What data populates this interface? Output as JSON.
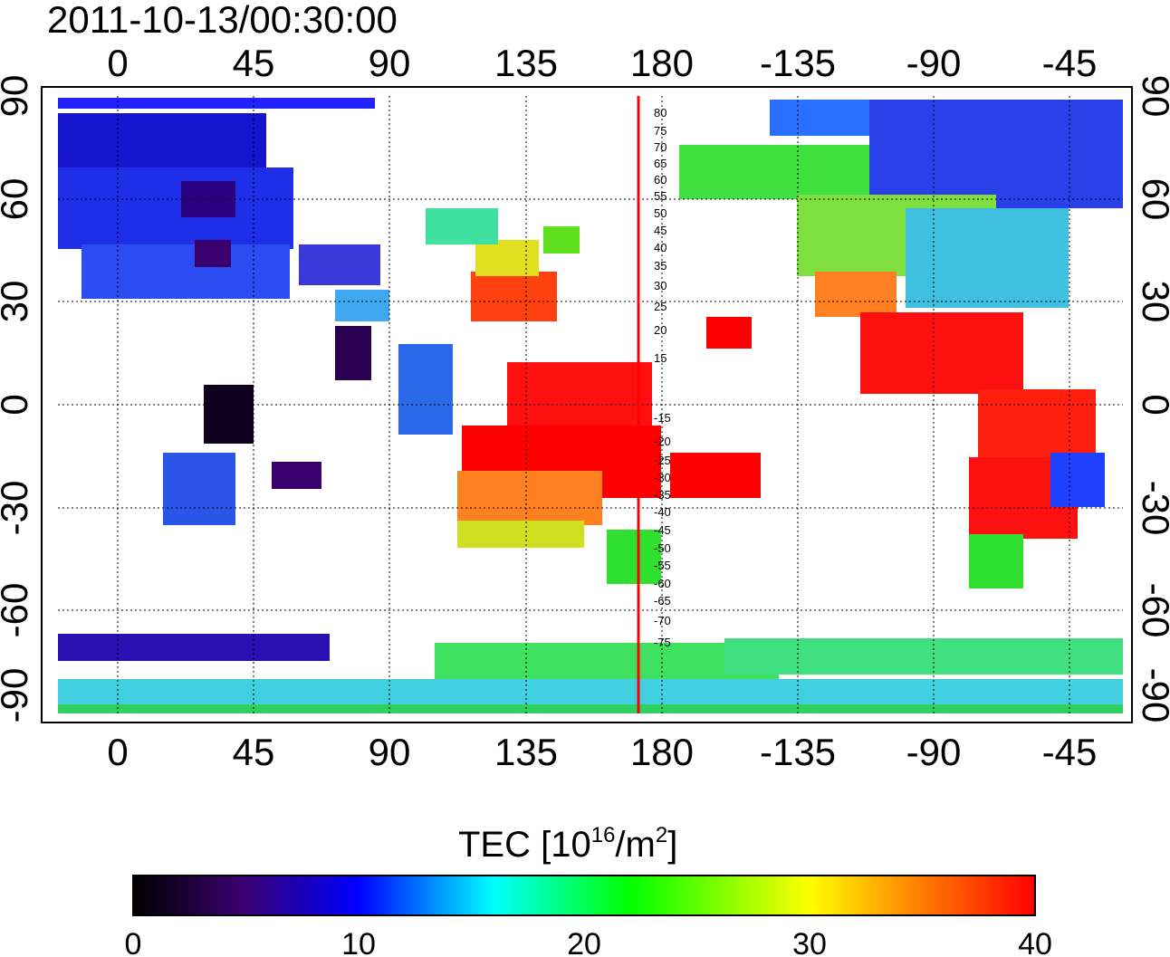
{
  "header": {
    "timestamp": "2011-10-13/00:30:00"
  },
  "map": {
    "lon_ticks": [
      "0",
      "45",
      "90",
      "135",
      "180",
      "-135",
      "-90",
      "-45"
    ],
    "lat_ticks": [
      "90",
      "60",
      "30",
      "0",
      "-30",
      "-60",
      "-90"
    ],
    "meridian_marker_color": "#ff0000",
    "contour_labels": [
      "80",
      "75",
      "70",
      "65",
      "60",
      "55",
      "50",
      "45",
      "40",
      "35",
      "30",
      "25",
      "20",
      "15",
      "-15",
      "-20",
      "-25",
      "-30",
      "-35",
      "-40",
      "-45",
      "-50",
      "-55",
      "-60",
      "-65",
      "-70",
      "-75"
    ]
  },
  "colorbar": {
    "title_prefix": "TEC  [10",
    "title_exp1": "16",
    "title_mid": "/m",
    "title_exp2": "2",
    "title_suffix": "]",
    "tick_labels": [
      "0",
      "10",
      "20",
      "30",
      "40"
    ],
    "range": [
      0,
      40
    ],
    "colors": [
      "#000000",
      "#3a006e",
      "#0000ff",
      "#00ffff",
      "#00ff00",
      "#ffff00",
      "#ff8000",
      "#ff0000"
    ]
  }
}
